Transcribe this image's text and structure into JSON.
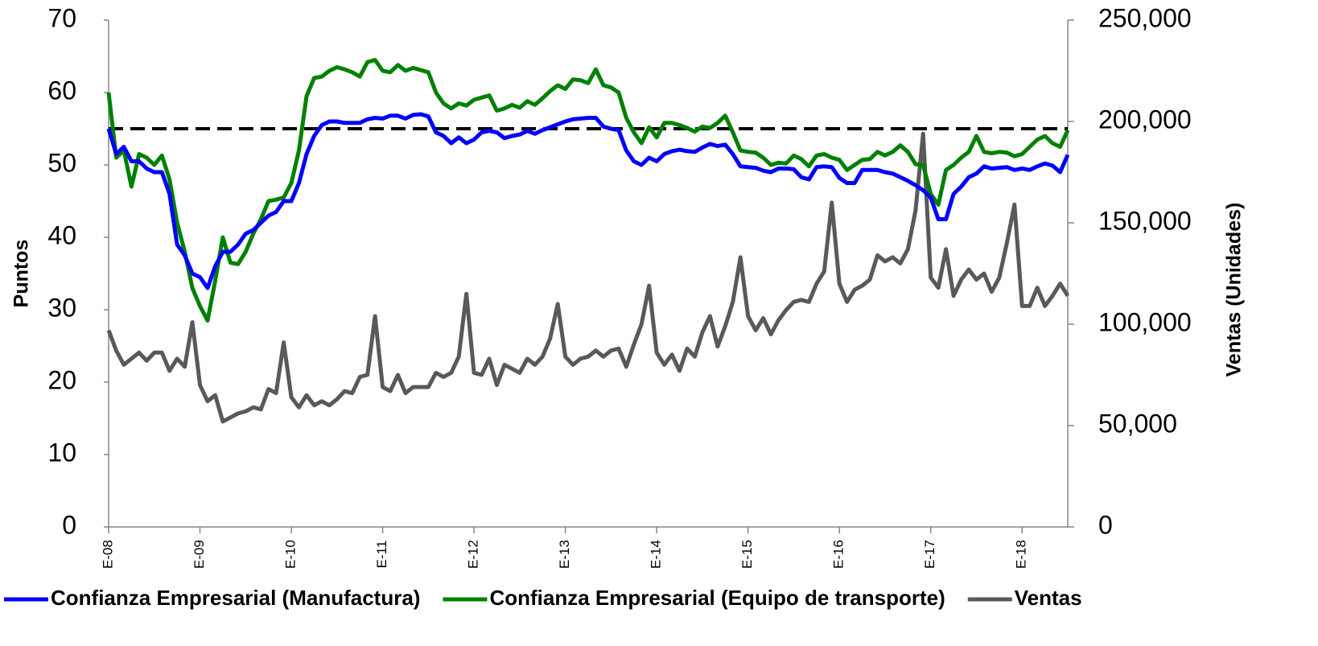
{
  "chart_data": {
    "type": "line",
    "y_label": "Puntos",
    "y2_label": "Ventas (Unidades)",
    "categories": [
      "E-08",
      null,
      null,
      null,
      null,
      null,
      null,
      null,
      null,
      null,
      null,
      null,
      "E-09",
      null,
      null,
      null,
      null,
      null,
      null,
      null,
      null,
      null,
      null,
      null,
      "E-10",
      null,
      null,
      null,
      null,
      null,
      null,
      null,
      null,
      null,
      null,
      null,
      "E-11",
      null,
      null,
      null,
      null,
      null,
      null,
      null,
      null,
      null,
      null,
      null,
      "E-12",
      null,
      null,
      null,
      null,
      null,
      null,
      null,
      null,
      null,
      null,
      null,
      "E-13",
      null,
      null,
      null,
      null,
      null,
      null,
      null,
      null,
      null,
      null,
      null,
      "E-14",
      null,
      null,
      null,
      null,
      null,
      null,
      null,
      null,
      null,
      null,
      null,
      "E-15",
      null,
      null,
      null,
      null,
      null,
      null,
      null,
      null,
      null,
      null,
      null,
      "E-16",
      null,
      null,
      null,
      null,
      null,
      null,
      null,
      null,
      null,
      null,
      null,
      "E-17",
      null,
      null,
      null,
      null,
      null,
      null,
      null,
      null,
      null,
      null,
      null,
      "E-18",
      null,
      null,
      null,
      null,
      null,
      null
    ],
    "series": [
      {
        "name": "Confianza Empresarial (Manufactura)",
        "color": "#0000ff",
        "axis": "y",
        "values": [
          55,
          51.5,
          52.5,
          50.5,
          50.5,
          49.5,
          49,
          49,
          46,
          39,
          37.5,
          35,
          34.5,
          33,
          36,
          38,
          38,
          39,
          40.5,
          41,
          42,
          43,
          43.5,
          45,
          45,
          47.5,
          51.5,
          54,
          55.5,
          56,
          56,
          55.8,
          55.8,
          55.8,
          56.3,
          56.5,
          56.4,
          56.8,
          56.8,
          56.4,
          56.9,
          57,
          56.7,
          54.5,
          54,
          53,
          53.8,
          53,
          53.5,
          54.5,
          54.7,
          54.5,
          53.7,
          54,
          54.2,
          54.7,
          54.3,
          54.8,
          55.2,
          55.6,
          56,
          56.3,
          56.4,
          56.5,
          56.5,
          55.3,
          55,
          54.8,
          52,
          50.5,
          50,
          51,
          50.5,
          51.5,
          51.9,
          52.1,
          51.9,
          51.8,
          52.4,
          52.9,
          52.6,
          52.8,
          51.5,
          49.8,
          49.7,
          49.6,
          49.2,
          49,
          49.5,
          49.5,
          49.4,
          48.3,
          48,
          49.7,
          49.8,
          49.7,
          48.2,
          47.5,
          47.5,
          49.3,
          49.3,
          49.3,
          49,
          48.8,
          48.3,
          47.8,
          47.2,
          46.5,
          45.5,
          42.5,
          42.5,
          46,
          47,
          48.3,
          48.8,
          49.8,
          49.5,
          49.6,
          49.7,
          49.3,
          49.5,
          49.3,
          49.8,
          50.2,
          49.9,
          49,
          51.4
        ]
      },
      {
        "name": "Confianza Empresarial (Equipo de transporte)",
        "color": "#008000",
        "axis": "y",
        "values": [
          60,
          51,
          52,
          47,
          51.5,
          51,
          50,
          51.3,
          48,
          42,
          38,
          33,
          30.5,
          28.5,
          34,
          40,
          36.5,
          36.3,
          38,
          40.5,
          42.5,
          45,
          45.2,
          45.5,
          47.5,
          52,
          59.5,
          62,
          62.2,
          63,
          63.5,
          63.2,
          62.8,
          62.2,
          64.2,
          64.5,
          63,
          62.8,
          63.8,
          63,
          63.4,
          63.1,
          62.8,
          60,
          58.5,
          57.8,
          58.5,
          58.2,
          59,
          59.3,
          59.6,
          57.5,
          57.8,
          58.3,
          57.9,
          58.8,
          58.3,
          59.2,
          60.2,
          61,
          60.5,
          61.8,
          61.7,
          61.3,
          63.2,
          61,
          60.7,
          60,
          56.5,
          54.5,
          53,
          55.2,
          53.8,
          55.8,
          55.8,
          55.5,
          55.1,
          54.6,
          55.3,
          55.1,
          55.8,
          56.8,
          54.5,
          52,
          51.8,
          51.7,
          51,
          50,
          50.3,
          50.2,
          51.3,
          50.8,
          49.8,
          51.3,
          51.5,
          51,
          50.7,
          49.3,
          50,
          50.7,
          50.8,
          51.8,
          51.3,
          51.8,
          52.7,
          51.8,
          50.1,
          50,
          46,
          44.5,
          49.3,
          50,
          51,
          51.8,
          54,
          51.8,
          51.6,
          51.8,
          51.7,
          51.2,
          51.5,
          52.5,
          53.5,
          54,
          53,
          52.5,
          54.8
        ]
      },
      {
        "name": "Ventas",
        "color": "#595959",
        "axis": "y2",
        "values": [
          97000,
          87000,
          80000,
          83000,
          86000,
          82000,
          86000,
          86000,
          77000,
          83000,
          79000,
          101000,
          70000,
          62000,
          65000,
          52000,
          54000,
          56000,
          57000,
          59000,
          58000,
          68000,
          66000,
          91000,
          64000,
          59000,
          65000,
          60000,
          62000,
          60000,
          63000,
          67000,
          66000,
          74000,
          75000,
          104000,
          69000,
          67000,
          75000,
          66000,
          69000,
          69000,
          69000,
          76000,
          74000,
          76000,
          84000,
          115000,
          76000,
          75000,
          83000,
          70000,
          80000,
          78000,
          76000,
          83000,
          80000,
          84000,
          93000,
          110000,
          84000,
          80000,
          83000,
          84000,
          87000,
          84000,
          87000,
          88000,
          79000,
          90000,
          100000,
          119000,
          86000,
          80000,
          85000,
          77000,
          88000,
          84000,
          96000,
          104000,
          89000,
          99000,
          111000,
          133000,
          104000,
          97000,
          103000,
          95000,
          102000,
          107000,
          111000,
          112000,
          111000,
          120000,
          126000,
          160000,
          120000,
          111000,
          117000,
          119000,
          122000,
          134000,
          131000,
          133000,
          130000,
          137000,
          156000,
          194000,
          123000,
          118000,
          137000,
          114000,
          122000,
          127000,
          122000,
          125000,
          116000,
          123000,
          140000,
          159000,
          109000,
          109000,
          118000,
          109000,
          114000,
          120000,
          114000
        ]
      }
    ],
    "ylim": [
      0,
      70
    ],
    "yticks": [
      0,
      10,
      20,
      30,
      40,
      50,
      60,
      70
    ],
    "y2lim": [
      0,
      250000
    ],
    "y2ticks": [
      0,
      {
        "value": 50000,
        "label": "50,000"
      },
      {
        "value": 100000,
        "label": "100,000"
      },
      {
        "value": 150000,
        "label": "150,000"
      },
      {
        "value": 200000,
        "label": "200,000"
      },
      {
        "value": 250000,
        "label": "250,000"
      }
    ],
    "reference_line": {
      "value": 55,
      "color": "#000000",
      "dashed": true
    },
    "legend": "bottom",
    "grid": false
  }
}
